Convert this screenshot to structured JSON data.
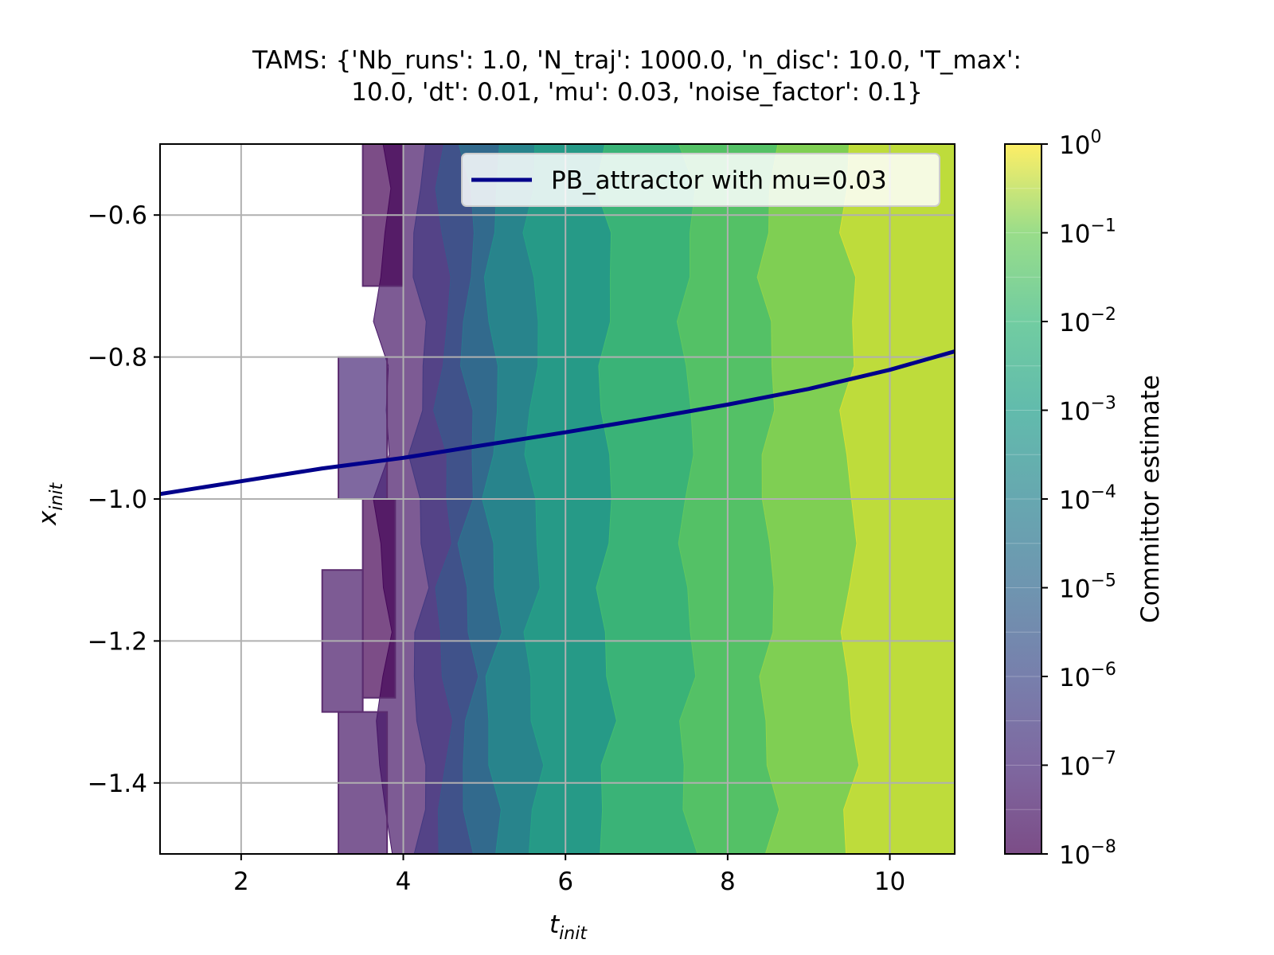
{
  "chart_data": {
    "type": "heatmap",
    "title_line1": "TAMS: {'Nb_runs': 1.0, 'N_traj': 1000.0, 'n_disc': 10.0, 'T_max':",
    "title_line2": "10.0, 'dt': 0.01, 'mu': 0.03, 'noise_factor': 0.1}",
    "xlabel_main": "t",
    "xlabel_sub": "init",
    "ylabel_main": "x",
    "ylabel_sub": "init",
    "xlim": [
      1.0,
      10.8
    ],
    "ylim": [
      -1.5,
      -0.5
    ],
    "x_ticks": [
      2,
      4,
      6,
      8,
      10
    ],
    "x_tick_labels": [
      "2",
      "4",
      "6",
      "8",
      "10"
    ],
    "y_ticks": [
      -0.6,
      -0.8,
      -1.0,
      -1.2,
      -1.4
    ],
    "y_tick_labels": [
      "−0.6",
      "−0.8",
      "−1.0",
      "−1.2",
      "−1.4"
    ],
    "grid": true,
    "colorbar": {
      "label": "Committor estimate",
      "scale": "log",
      "range": [
        1e-08,
        1
      ],
      "tick_exponents": [
        0,
        -1,
        -2,
        -3,
        -4,
        -5,
        -6,
        -7,
        -8
      ],
      "tick_base": "10",
      "tick_exponent_labels": [
        "0",
        "−1",
        "−2",
        "−3",
        "−4",
        "−5",
        "−6",
        "−7",
        "−8"
      ],
      "levels_per_decade": 2,
      "colormap": "viridis",
      "alpha": 0.7
    },
    "contour_bands": [
      {
        "t_start": 3.75,
        "log10_committor": -7.5
      },
      {
        "t_start": 4.2,
        "log10_committor": -6.5
      },
      {
        "t_start": 4.5,
        "log10_committor": -5.5
      },
      {
        "t_start": 4.8,
        "log10_committor": -4.5
      },
      {
        "t_start": 5.1,
        "log10_committor": -3.5
      },
      {
        "t_start": 5.6,
        "log10_committor": -2.75
      },
      {
        "t_start": 6.5,
        "log10_committor": -1.75
      },
      {
        "t_start": 7.5,
        "log10_committor": -1.25
      },
      {
        "t_start": 8.5,
        "log10_committor": -0.75
      },
      {
        "t_start": 9.5,
        "log10_committor": -0.25
      }
    ],
    "patches": [
      {
        "x": [
          3.2,
          3.8
        ],
        "y": [
          -1.0,
          -0.8
        ],
        "log10_committor": -7.0
      },
      {
        "x": [
          3.0,
          3.5
        ],
        "y": [
          -1.3,
          -1.1
        ],
        "log10_committor": -7.5
      },
      {
        "x": [
          3.2,
          3.8
        ],
        "y": [
          -1.5,
          -1.3
        ],
        "log10_committor": -7.5
      },
      {
        "x": [
          3.5,
          4.0
        ],
        "y": [
          -0.7,
          -0.5
        ],
        "log10_committor": -8.0
      },
      {
        "x": [
          3.5,
          3.9
        ],
        "y": [
          -1.28,
          -1.0
        ],
        "log10_committor": -8.0
      }
    ],
    "series": [
      {
        "name": "PB_attractor with mu=0.03",
        "color": "#00008b",
        "x": [
          1.0,
          2.0,
          3.0,
          4.0,
          5.0,
          6.0,
          7.0,
          8.0,
          9.0,
          10.0,
          10.8
        ],
        "y": [
          -0.993,
          -0.975,
          -0.957,
          -0.942,
          -0.924,
          -0.906,
          -0.887,
          -0.867,
          -0.845,
          -0.818,
          -0.792
        ]
      }
    ],
    "legend_placement": "upper right"
  }
}
